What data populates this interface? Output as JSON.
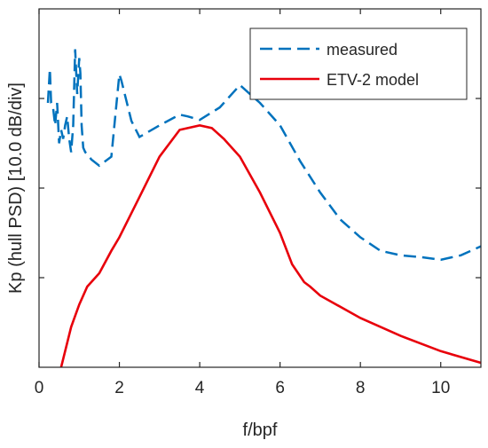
{
  "chart_data": {
    "type": "line",
    "xlabel": "f/bpf",
    "ylabel": "Kp (hull PSD) [10.0 dB/div]",
    "xlim": [
      0,
      11
    ],
    "ylim": [
      -4,
      0
    ],
    "x_ticks": [
      0,
      2,
      4,
      6,
      8,
      10
    ],
    "x_tick_labels": [
      "0",
      "2",
      "4",
      "6",
      "8",
      "10"
    ],
    "y_ticks": [
      -3,
      -2,
      -1
    ],
    "y_tick_labels": [
      "",
      "",
      ""
    ],
    "grid": false,
    "legend_position": "top-right",
    "series": [
      {
        "name": "measured",
        "color": "#0072BD",
        "style": "dashed",
        "x": [
          0.22,
          0.27,
          0.3,
          0.35,
          0.4,
          0.45,
          0.5,
          0.55,
          0.6,
          0.65,
          0.7,
          0.75,
          0.8,
          0.85,
          0.9,
          0.95,
          1.0,
          1.03,
          1.06,
          1.1,
          1.15,
          1.2,
          1.3,
          1.5,
          1.8,
          2.0,
          2.05,
          2.3,
          2.5,
          3.0,
          3.5,
          3.7,
          4.0,
          4.5,
          5.0,
          5.5,
          6.0,
          6.5,
          7.0,
          7.5,
          8.0,
          8.5,
          9.0,
          9.5,
          10.0,
          10.5,
          11.0
        ],
        "values": [
          -1.05,
          -0.67,
          -1.05,
          -1.1,
          -1.3,
          -1.05,
          -1.5,
          -1.35,
          -1.45,
          -1.3,
          -1.2,
          -1.45,
          -1.6,
          -1.3,
          -0.45,
          -0.95,
          -0.55,
          -0.72,
          -1.3,
          -1.55,
          -1.6,
          -1.62,
          -1.68,
          -1.75,
          -1.65,
          -0.73,
          -0.8,
          -1.25,
          -1.43,
          -1.3,
          -1.18,
          -1.2,
          -1.24,
          -1.1,
          -0.85,
          -1.05,
          -1.3,
          -1.7,
          -2.05,
          -2.35,
          -2.55,
          -2.7,
          -2.75,
          -2.77,
          -2.8,
          -2.75,
          -2.65
        ]
      },
      {
        "name": "ETV-2 model",
        "color": "#E8000B",
        "style": "solid",
        "x": [
          0.55,
          0.8,
          1.0,
          1.2,
          1.5,
          1.8,
          2.0,
          2.5,
          3.0,
          3.5,
          4.0,
          4.3,
          4.6,
          5.0,
          5.5,
          6.0,
          6.3,
          6.6,
          6.75,
          7.0,
          8.0,
          9.0,
          10.0,
          11.0
        ],
        "values": [
          -4.0,
          -3.55,
          -3.3,
          -3.1,
          -2.95,
          -2.7,
          -2.55,
          -2.1,
          -1.65,
          -1.35,
          -1.3,
          -1.33,
          -1.45,
          -1.65,
          -2.05,
          -2.5,
          -2.85,
          -3.05,
          -3.1,
          -3.2,
          -3.45,
          -3.65,
          -3.82,
          -3.95
        ]
      }
    ]
  }
}
